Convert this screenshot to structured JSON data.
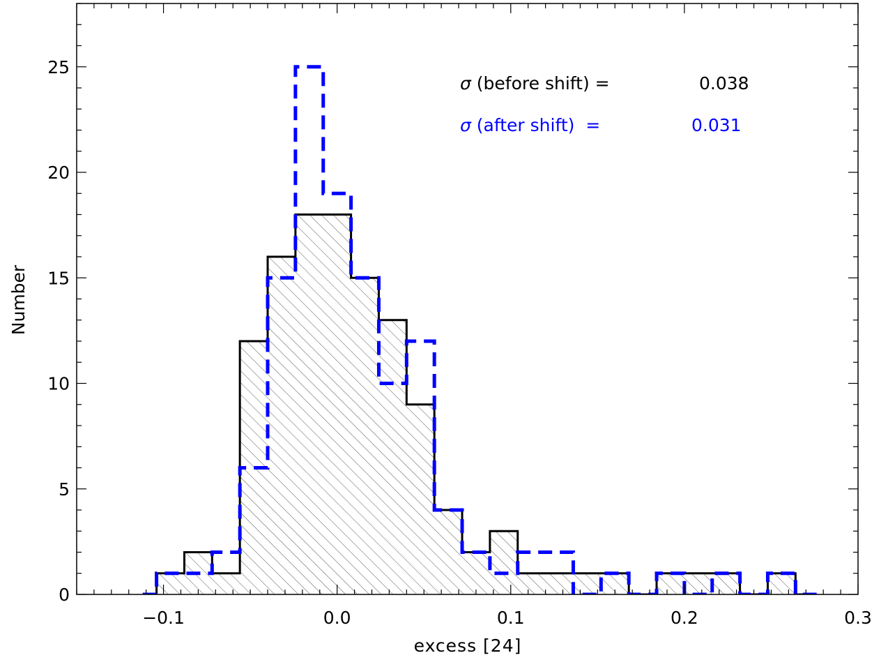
{
  "chart_data": {
    "type": "histogram",
    "title": "",
    "xlabel": "excess [24]",
    "ylabel": "Number",
    "xlim": [
      -0.15,
      0.3
    ],
    "ylim": [
      0,
      28
    ],
    "x_ticks": [
      -0.1,
      0.0,
      0.1,
      0.2,
      0.3
    ],
    "x_tick_labels": [
      "−0.1",
      "0.0",
      "0.1",
      "0.2",
      "0.3"
    ],
    "y_ticks": [
      0,
      5,
      10,
      15,
      20,
      25
    ],
    "y_tick_labels": [
      "0",
      "5",
      "10",
      "15",
      "20",
      "25"
    ],
    "grid": false,
    "series": [
      {
        "name": "before shift",
        "style": "solid",
        "fill": "hatched",
        "color": "#000000",
        "bin_edges": [
          -0.104,
          -0.088,
          -0.072,
          -0.056,
          -0.04,
          -0.024,
          -0.008,
          0.008,
          0.024,
          0.04,
          0.056,
          0.072,
          0.088,
          0.104,
          0.12,
          0.136,
          0.152,
          0.168,
          0.184,
          0.2,
          0.216,
          0.232,
          0.248,
          0.264,
          0.27
        ],
        "counts": [
          1,
          2,
          1,
          12,
          16,
          18,
          18,
          15,
          13,
          9,
          4,
          2,
          3,
          1,
          1,
          1,
          1,
          0,
          1,
          1,
          1,
          0,
          1,
          0
        ]
      },
      {
        "name": "after shift",
        "style": "dashed",
        "fill": "none",
        "color": "#0000ff",
        "bin_edges": [
          -0.112,
          -0.104,
          -0.088,
          -0.072,
          -0.056,
          -0.04,
          -0.024,
          -0.008,
          0.008,
          0.024,
          0.04,
          0.056,
          0.072,
          0.088,
          0.104,
          0.12,
          0.136,
          0.152,
          0.168,
          0.184,
          0.2,
          0.216,
          0.232,
          0.248,
          0.264,
          0.28
        ],
        "counts": [
          0,
          1,
          1,
          2,
          6,
          15,
          25,
          19,
          15,
          10,
          12,
          4,
          2,
          1,
          2,
          2,
          0,
          1,
          0,
          1,
          0,
          1,
          0,
          1,
          0
        ]
      }
    ],
    "annotations": [
      {
        "prefix": "σ",
        "label": " (before shift) =",
        "value": "0.038",
        "color": "#000000"
      },
      {
        "prefix": "σ",
        "label": " (after shift)  =",
        "value": "0.031",
        "color": "#0000ff"
      }
    ]
  }
}
